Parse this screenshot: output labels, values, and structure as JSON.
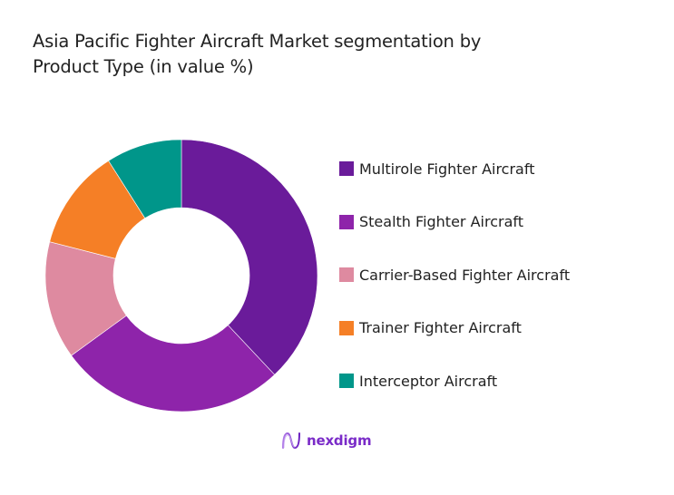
{
  "header": {
    "title_line1": "Asia Pacific Fighter Aircraft Market segmentation by",
    "title_line2": "Product Type (in value %)"
  },
  "chart_data": {
    "type": "pie",
    "subtype": "donut",
    "title": "Asia Pacific Fighter Aircraft Market segmentation by Product Type (in value %)",
    "categories": [
      "Multirole Fighter Aircraft",
      "Stealth Fighter Aircraft",
      "Carrier-Based Fighter Aircraft",
      "Trainer Fighter Aircraft",
      "Interceptor Aircraft"
    ],
    "values": [
      38,
      27,
      14,
      12,
      9
    ],
    "colors": [
      "#6a1b9a",
      "#8e24aa",
      "#de8aa0",
      "#f57f26",
      "#00968a"
    ],
    "legend_position": "right",
    "data_labels": false
  },
  "legend": {
    "items": [
      {
        "label": "Multirole Fighter Aircraft",
        "color": "#6a1b9a"
      },
      {
        "label": "Stealth Fighter Aircraft",
        "color": "#8e24aa"
      },
      {
        "label": "Carrier-Based Fighter Aircraft",
        "color": "#de8aa0"
      },
      {
        "label": "Trainer Fighter Aircraft",
        "color": "#f57f26"
      },
      {
        "label": "Interceptor Aircraft",
        "color": "#00968a"
      }
    ]
  },
  "footer": {
    "brand": "nexdigm",
    "brand_color": "#7a2bc8"
  }
}
